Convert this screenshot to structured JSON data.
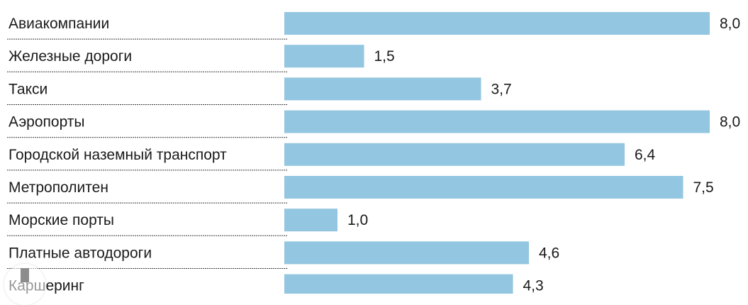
{
  "chart_data": {
    "type": "bar",
    "orientation": "horizontal",
    "categories": [
      "Авиакомпании",
      "Железные дороги",
      "Такси",
      "Аэропорты",
      "Городской наземный транспорт",
      "Метрополитен",
      "Морские порты",
      "Платные автодороги",
      "Каршеринг"
    ],
    "values": [
      8.0,
      1.5,
      3.7,
      8.0,
      6.4,
      7.5,
      1.0,
      4.6,
      4.3
    ],
    "value_labels": [
      "8,0",
      "1,5",
      "3,7",
      "8,0",
      "6,4",
      "7,5",
      "1,0",
      "4,6",
      "4,3"
    ],
    "xlim": [
      0,
      8.0
    ],
    "grid": false,
    "bar_color": "#93c6e0"
  }
}
